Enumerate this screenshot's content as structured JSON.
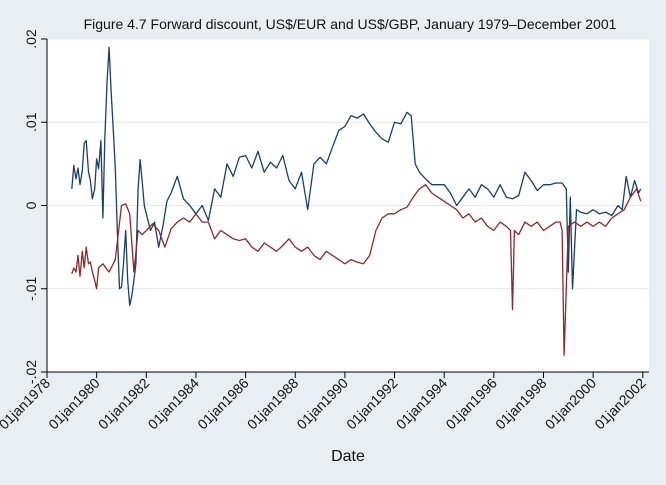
{
  "chart_data": {
    "type": "line",
    "title": "Figure 4.7 Forward discount, US$/EUR and US$/GBP, January 1979–December 2001",
    "xlabel": "Date",
    "ylabel": "",
    "xlim": [
      1978.0,
      2002.25
    ],
    "ylim": [
      -0.02,
      0.02
    ],
    "x_ticks": [
      1978,
      1980,
      1982,
      1984,
      1986,
      1988,
      1990,
      1992,
      1994,
      1996,
      1998,
      2000,
      2002
    ],
    "x_tick_labels": [
      "01jan1978",
      "01jan1980",
      "01jan1982",
      "01jan1984",
      "01jan1986",
      "01jan1988",
      "01jan1990",
      "01jan1992",
      "01jan1994",
      "01jan1996",
      "01jan1998",
      "01jan2000",
      "01jan2002"
    ],
    "y_ticks": [
      -0.02,
      -0.01,
      0,
      0.01,
      0.02
    ],
    "y_tick_labels": [
      "-.02",
      "-.01",
      "0",
      ".01",
      ".02"
    ],
    "grid": "horizontal",
    "legend": "none",
    "plot_background": "#ffffff",
    "figure_background": "#e8eef3",
    "series": [
      {
        "color": "#1b3f66",
        "x": [
          1979.0,
          1979.08,
          1979.17,
          1979.25,
          1979.33,
          1979.42,
          1979.5,
          1979.58,
          1979.67,
          1979.75,
          1979.83,
          1979.92,
          1980.0,
          1980.08,
          1980.17,
          1980.25,
          1980.33,
          1980.42,
          1980.5,
          1980.58,
          1980.67,
          1980.75,
          1980.83,
          1980.92,
          1981.0,
          1981.08,
          1981.17,
          1981.25,
          1981.33,
          1981.42,
          1981.5,
          1981.58,
          1981.67,
          1981.75,
          1981.83,
          1981.92,
          1982.0,
          1982.17,
          1982.33,
          1982.5,
          1982.67,
          1982.83,
          1983.0,
          1983.25,
          1983.5,
          1983.75,
          1984.0,
          1984.25,
          1984.5,
          1984.75,
          1985.0,
          1985.25,
          1985.5,
          1985.75,
          1986.0,
          1986.25,
          1986.5,
          1986.75,
          1987.0,
          1987.25,
          1987.5,
          1987.75,
          1988.0,
          1988.25,
          1988.5,
          1988.75,
          1989.0,
          1989.25,
          1989.5,
          1989.75,
          1990.0,
          1990.25,
          1990.5,
          1990.75,
          1991.0,
          1991.25,
          1991.5,
          1991.75,
          1992.0,
          1992.25,
          1992.5,
          1992.67,
          1992.83,
          1993.0,
          1993.25,
          1993.5,
          1993.75,
          1994.0,
          1994.25,
          1994.5,
          1994.75,
          1995.0,
          1995.25,
          1995.5,
          1995.75,
          1996.0,
          1996.25,
          1996.5,
          1996.75,
          1997.0,
          1997.25,
          1997.5,
          1997.75,
          1998.0,
          1998.25,
          1998.5,
          1998.75,
          1998.92,
          1999.0,
          1999.08,
          1999.17,
          1999.33,
          1999.5,
          1999.75,
          2000.0,
          2000.25,
          2000.5,
          2000.75,
          2001.0,
          2001.17,
          2001.33,
          2001.5,
          2001.67,
          2001.83,
          2001.92
        ],
        "y": [
          0.002,
          0.0048,
          0.0032,
          0.0045,
          0.0025,
          0.0042,
          0.0075,
          0.0078,
          0.004,
          0.003,
          0.0008,
          0.002,
          0.0056,
          0.0044,
          0.0078,
          -0.0015,
          0.008,
          0.015,
          0.019,
          0.014,
          0.009,
          0.0045,
          -0.003,
          -0.01,
          -0.0098,
          -0.007,
          -0.003,
          -0.009,
          -0.012,
          -0.0108,
          -0.009,
          -0.007,
          0.002,
          0.0055,
          0.003,
          0.0,
          -0.001,
          -0.003,
          -0.002,
          -0.005,
          -0.0025,
          0.0005,
          0.0015,
          0.0035,
          0.0008,
          0.0,
          -0.001,
          0.0,
          -0.0018,
          0.002,
          0.001,
          0.005,
          0.0035,
          0.0058,
          0.006,
          0.0045,
          0.0065,
          0.004,
          0.0052,
          0.0045,
          0.006,
          0.003,
          0.002,
          0.004,
          -0.0005,
          0.005,
          0.0058,
          0.005,
          0.007,
          0.009,
          0.0095,
          0.0108,
          0.0105,
          0.011,
          0.0098,
          0.0088,
          0.008,
          0.0076,
          0.01,
          0.0098,
          0.0112,
          0.0108,
          0.005,
          0.004,
          0.0032,
          0.0025,
          0.0025,
          0.0025,
          0.0015,
          0.0,
          0.001,
          0.002,
          0.001,
          0.0025,
          0.002,
          0.001,
          0.0025,
          0.001,
          0.0008,
          0.0012,
          0.004,
          0.003,
          0.0018,
          0.0025,
          0.0025,
          0.0027,
          0.0027,
          0.002,
          -0.008,
          0.001,
          -0.01,
          -0.0005,
          -0.0008,
          -0.001,
          -0.0005,
          -0.001,
          -0.0008,
          -0.0012,
          0.0,
          -0.0005,
          0.0035,
          0.001,
          0.003,
          0.0015,
          0.002
        ]
      },
      {
        "color": "#8b2b2b",
        "x": [
          1979.0,
          1979.08,
          1979.17,
          1979.25,
          1979.33,
          1979.42,
          1979.5,
          1979.58,
          1979.67,
          1979.75,
          1979.83,
          1979.92,
          1980.0,
          1980.08,
          1980.25,
          1980.5,
          1980.75,
          1981.0,
          1981.17,
          1981.33,
          1981.5,
          1981.67,
          1981.83,
          1982.0,
          1982.25,
          1982.5,
          1982.75,
          1983.0,
          1983.25,
          1983.5,
          1983.75,
          1984.0,
          1984.25,
          1984.5,
          1984.75,
          1985.0,
          1985.25,
          1985.5,
          1985.75,
          1986.0,
          1986.25,
          1986.5,
          1986.75,
          1987.0,
          1987.25,
          1987.5,
          1987.75,
          1988.0,
          1988.25,
          1988.5,
          1988.75,
          1989.0,
          1989.25,
          1989.5,
          1989.75,
          1990.0,
          1990.25,
          1990.5,
          1990.75,
          1991.0,
          1991.25,
          1991.5,
          1991.75,
          1992.0,
          1992.25,
          1992.5,
          1992.75,
          1993.0,
          1993.25,
          1993.5,
          1993.75,
          1994.0,
          1994.25,
          1994.5,
          1994.75,
          1995.0,
          1995.25,
          1995.5,
          1995.75,
          1996.0,
          1996.25,
          1996.5,
          1996.67,
          1996.75,
          1996.83,
          1997.0,
          1997.25,
          1997.5,
          1997.75,
          1998.0,
          1998.25,
          1998.5,
          1998.67,
          1998.75,
          1998.83,
          1999.0,
          1999.25,
          1999.5,
          1999.75,
          2000.0,
          2000.25,
          2000.5,
          2000.75,
          2001.0,
          2001.25,
          2001.5,
          2001.75,
          2001.92
        ],
        "y": [
          -0.0082,
          -0.0075,
          -0.008,
          -0.006,
          -0.0085,
          -0.0055,
          -0.0075,
          -0.005,
          -0.007,
          -0.0068,
          -0.008,
          -0.009,
          -0.01,
          -0.0075,
          -0.007,
          -0.008,
          -0.0065,
          0.0,
          0.0002,
          -0.001,
          -0.008,
          -0.003,
          -0.0035,
          -0.003,
          -0.0022,
          -0.003,
          -0.005,
          -0.0028,
          -0.002,
          -0.0015,
          -0.002,
          -0.001,
          -0.002,
          -0.002,
          -0.004,
          -0.003,
          -0.0035,
          -0.004,
          -0.0042,
          -0.004,
          -0.005,
          -0.0055,
          -0.0045,
          -0.005,
          -0.0055,
          -0.0048,
          -0.004,
          -0.005,
          -0.0055,
          -0.005,
          -0.006,
          -0.0065,
          -0.0055,
          -0.006,
          -0.0065,
          -0.007,
          -0.0065,
          -0.0068,
          -0.007,
          -0.006,
          -0.003,
          -0.0015,
          -0.001,
          -0.001,
          -0.0005,
          -0.0002,
          0.001,
          0.002,
          0.0025,
          0.0015,
          0.001,
          0.0005,
          0.0,
          -0.0005,
          -0.0015,
          -0.001,
          -0.002,
          -0.0015,
          -0.0025,
          -0.003,
          -0.002,
          -0.0025,
          -0.003,
          -0.0125,
          -0.003,
          -0.0035,
          -0.002,
          -0.0025,
          -0.002,
          -0.003,
          -0.0025,
          -0.002,
          -0.002,
          -0.003,
          -0.018,
          -0.0025,
          -0.002,
          -0.0025,
          -0.002,
          -0.0025,
          -0.002,
          -0.0025,
          -0.0015,
          -0.001,
          -0.0005,
          0.001,
          0.002,
          0.0005
        ]
      }
    ]
  }
}
